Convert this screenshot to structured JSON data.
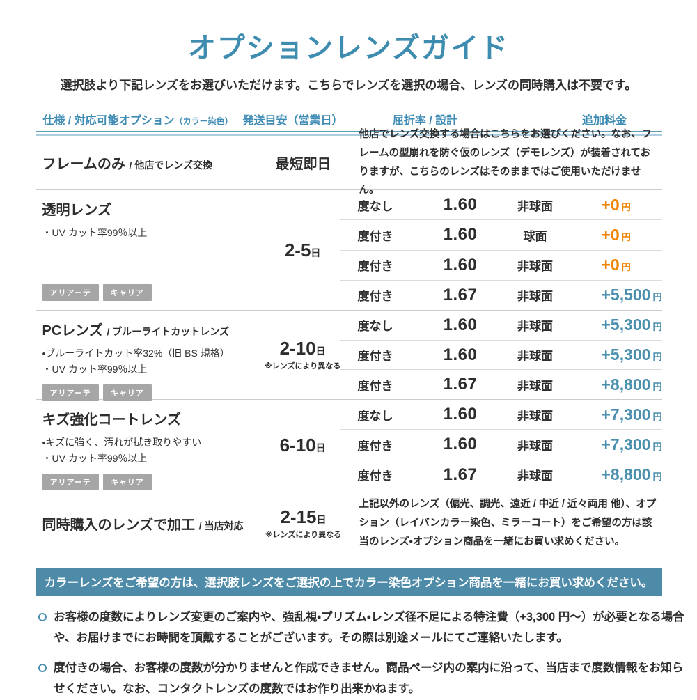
{
  "header": {
    "title": "オプションレンズガイド",
    "subtitle": "選択肢より下記レンズをお選びいただけます。こちらでレンズを選択の場合、レンズの同時購入は不要です。",
    "columns": {
      "spec": "仕様 / 対応可能オプション",
      "spec_note": "（カラー染色）",
      "shipping": "発送目安（営業日）",
      "refraction": "屈折率 / 設計",
      "price": "追加料金"
    }
  },
  "sections": [
    {
      "name": "フレームのみ",
      "suffix": "/ 他店でレンズ交換",
      "shipping": "最短即日",
      "note": "他店でレンズ交換する場合はこちらをお選びください。なお、フレームの型崩れを防ぐ仮のレンズ（デモレンズ）が装着されておりますが、こちらのレンズはそのままではご使用いただけません。"
    },
    {
      "name": "透明レンズ",
      "features": [
        "・UV カット率99％以上"
      ],
      "badges": [
        "アリアーテ",
        "キャリア"
      ],
      "shipping": "2-5",
      "shipping_unit": "日",
      "rows": [
        {
          "power": "度なし",
          "index": "1.60",
          "design": "非球面",
          "price": "+0",
          "unit": "円",
          "price_color": "orange"
        },
        {
          "power": "度付き",
          "index": "1.60",
          "design": "球面",
          "price": "+0",
          "unit": "円",
          "price_color": "orange"
        },
        {
          "power": "度付き",
          "index": "1.60",
          "design": "非球面",
          "price": "+0",
          "unit": "円",
          "price_color": "orange"
        },
        {
          "power": "度付き",
          "index": "1.67",
          "design": "非球面",
          "price": "+5,500",
          "unit": "円",
          "price_color": "blue"
        }
      ]
    },
    {
      "name": "PCレンズ",
      "suffix": "/ ブルーライトカットレンズ",
      "features": [
        "・ブルーライトカット率32%（旧 BS 規格）",
        "・UV カット率99％以上"
      ],
      "badges": [
        "アリアーテ",
        "キャリア"
      ],
      "shipping": "2-10",
      "shipping_unit": "日",
      "shipping_note": "※レンズにより異なる",
      "rows": [
        {
          "power": "度なし",
          "index": "1.60",
          "design": "非球面",
          "price": "+5,300",
          "unit": "円",
          "price_color": "blue"
        },
        {
          "power": "度付き",
          "index": "1.60",
          "design": "非球面",
          "price": "+5,300",
          "unit": "円",
          "price_color": "blue"
        },
        {
          "power": "度付き",
          "index": "1.67",
          "design": "非球面",
          "price": "+8,800",
          "unit": "円",
          "price_color": "blue"
        }
      ]
    },
    {
      "name": "キズ強化コートレンズ",
      "features": [
        "・キズに強く、汚れが拭き取りやすい",
        "・UV カット率99％以上"
      ],
      "badges": [
        "アリアーテ",
        "キャリア"
      ],
      "shipping": "6-10",
      "shipping_unit": "日",
      "rows": [
        {
          "power": "度なし",
          "index": "1.60",
          "design": "非球面",
          "price": "+7,300",
          "unit": "円",
          "price_color": "blue"
        },
        {
          "power": "度付き",
          "index": "1.60",
          "design": "非球面",
          "price": "+7,300",
          "unit": "円",
          "price_color": "blue"
        },
        {
          "power": "度付き",
          "index": "1.67",
          "design": "非球面",
          "price": "+8,800",
          "unit": "円",
          "price_color": "blue"
        }
      ]
    },
    {
      "name": "同時購入のレンズで加工",
      "suffix": "/ 当店対応",
      "shipping": "2-15",
      "shipping_unit": "日",
      "shipping_note": "※レンズにより異なる",
      "note": "上記以外のレンズ（偏光、調光、遠近 / 中近 / 近々両用 他）、オプション（レイバンカラー染色、ミラーコート）をご希望の方は該当のレンズ・オプション商品を一緒にお買い求めください。"
    }
  ],
  "banner": {
    "text": "カラーレンズをご希望の方は、選択肢レンズをご選択の上でカラー染色オプション商品を一緒にお買い求めください。"
  },
  "notes": [
    "お客様の度数によりレンズ変更のご案内や、強乱視・プリズム・レンズ径不足による特注費（+3,300 円～）が必要となる場合や、お届けまでにお時間を頂戴することがございます。その際は別途メールにてご連絡いたします。",
    "度付きの場合、お客様の度数が分かりませんと作成できません。商品ページ内の案内に沿って、当店まで度数情報をお知らせください。なお、コンタクトレンズの度数ではお作り出来かねます。"
  ],
  "colors": {
    "accent_blue": "#3E8CAF",
    "price_blue": "#4A8FAE",
    "price_orange": "#F08300",
    "banner_background": "#4E8BA8",
    "badge_background": "#A6A6A6"
  }
}
